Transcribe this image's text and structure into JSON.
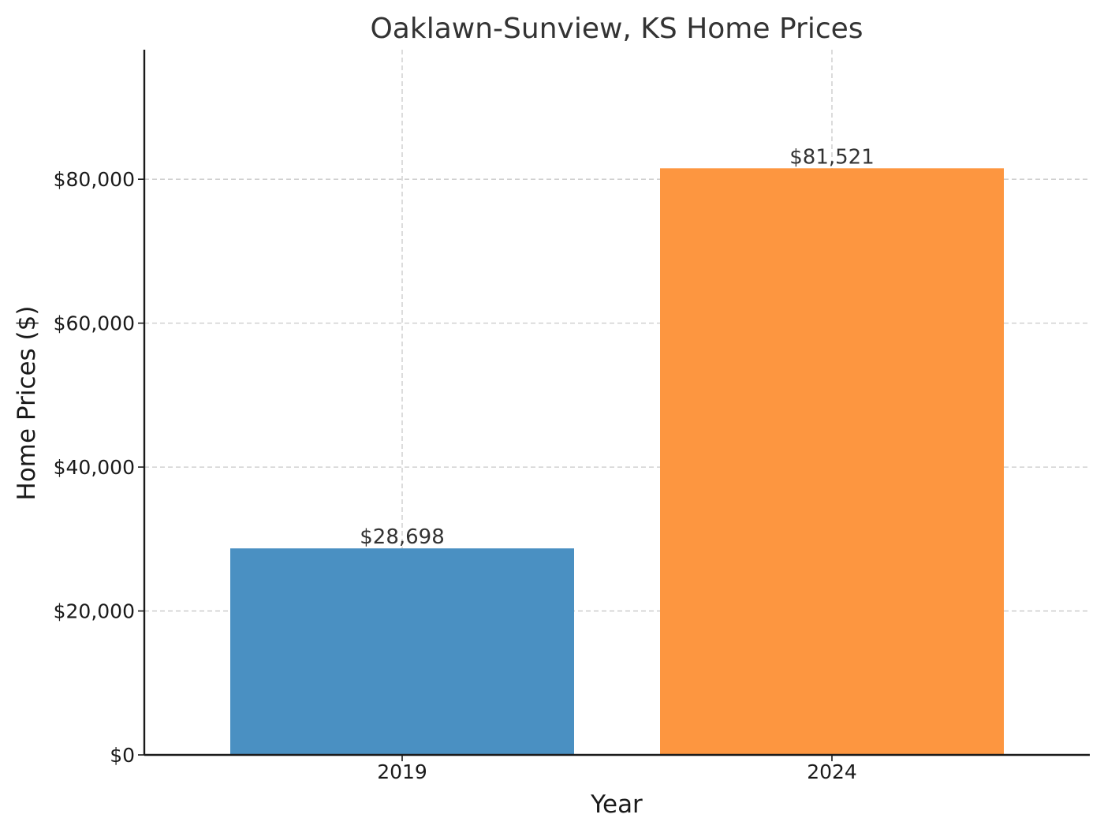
{
  "chart_data": {
    "type": "bar",
    "title": "Oaklawn-Sunview, KS Home Prices",
    "xlabel": "Year",
    "ylabel": "Home Prices ($)",
    "categories": [
      "2019",
      "2024"
    ],
    "values": [
      28698,
      81521
    ],
    "value_labels": [
      "$28,698",
      "$81,521"
    ],
    "bar_colors": [
      "#4a90c2",
      "#fd9640"
    ],
    "ylim": [
      0,
      98000
    ],
    "yticks": [
      0,
      20000,
      40000,
      60000,
      80000
    ],
    "ytick_labels": [
      "$0",
      "$20,000",
      "$40,000",
      "$60,000",
      "$80,000"
    ],
    "grid": true
  }
}
